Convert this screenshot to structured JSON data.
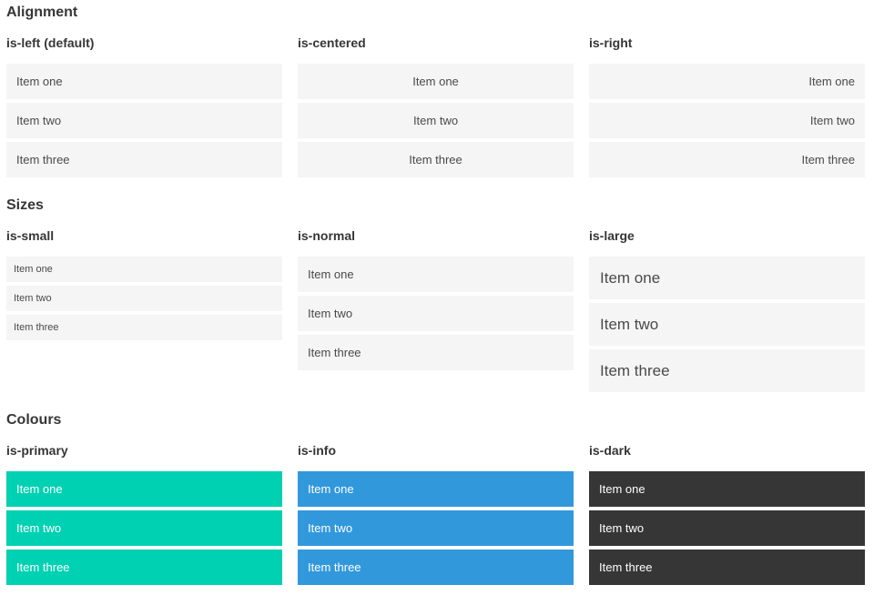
{
  "colors": {
    "page_background": "#ffffff",
    "heading_text": "#363636",
    "item_background": "#f5f5f5",
    "item_text": "#4a4a4a",
    "primary": "#00d1b2",
    "info": "#3298dc",
    "dark": "#363636",
    "colored_item_text": "#ffffff"
  },
  "sections": [
    {
      "title": "Alignment",
      "columns": [
        {
          "title": "is-left (default)",
          "variant": "left",
          "items": [
            "Item one",
            "Item two",
            "Item three"
          ]
        },
        {
          "title": "is-centered",
          "variant": "centered",
          "items": [
            "Item one",
            "Item two",
            "Item three"
          ]
        },
        {
          "title": "is-right",
          "variant": "right",
          "items": [
            "Item one",
            "Item two",
            "Item three"
          ]
        }
      ]
    },
    {
      "title": "Sizes",
      "columns": [
        {
          "title": "is-small",
          "variant": "small",
          "items": [
            "Item one",
            "Item two",
            "Item three"
          ]
        },
        {
          "title": "is-normal",
          "variant": "normal",
          "items": [
            "Item one",
            "Item two",
            "Item three"
          ]
        },
        {
          "title": "is-large",
          "variant": "large",
          "items": [
            "Item one",
            "Item two",
            "Item three"
          ]
        }
      ]
    },
    {
      "title": "Colours",
      "columns": [
        {
          "title": "is-primary",
          "variant": "primary",
          "items": [
            "Item one",
            "Item two",
            "Item three"
          ]
        },
        {
          "title": "is-info",
          "variant": "info",
          "items": [
            "Item one",
            "Item two",
            "Item three"
          ]
        },
        {
          "title": "is-dark",
          "variant": "dark",
          "items": [
            "Item one",
            "Item two",
            "Item three"
          ]
        }
      ]
    }
  ]
}
